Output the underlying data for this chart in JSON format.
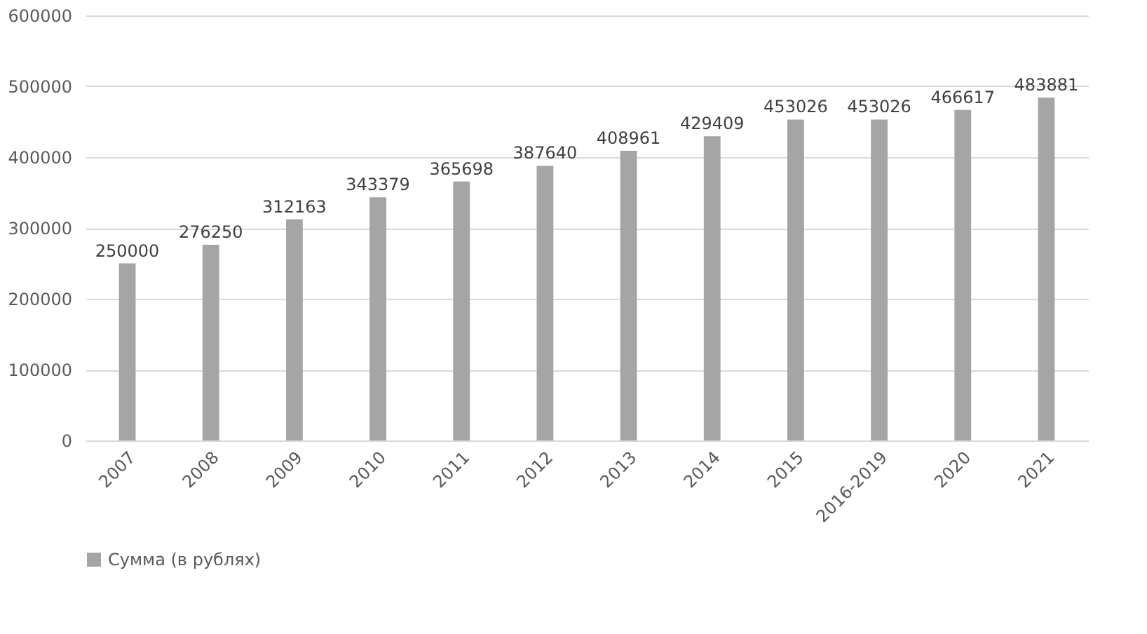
{
  "chart_data": {
    "type": "bar",
    "categories": [
      "2007",
      "2008",
      "2009",
      "2010",
      "2011",
      "2012",
      "2013",
      "2014",
      "2015",
      "2016-2019",
      "2020",
      "2021"
    ],
    "series": [
      {
        "name": "Сумма (в рублях)",
        "color": "#a5a5a5",
        "values": [
          250000,
          276250,
          312163,
          343379,
          365698,
          387640,
          408961,
          429409,
          453026,
          453026,
          466617,
          483881
        ]
      }
    ],
    "ylim": [
      0,
      600000
    ],
    "yticks": [
      0,
      100000,
      200000,
      300000,
      400000,
      500000,
      600000
    ],
    "grid": "y",
    "legend": "bottom",
    "data_labels": true
  }
}
